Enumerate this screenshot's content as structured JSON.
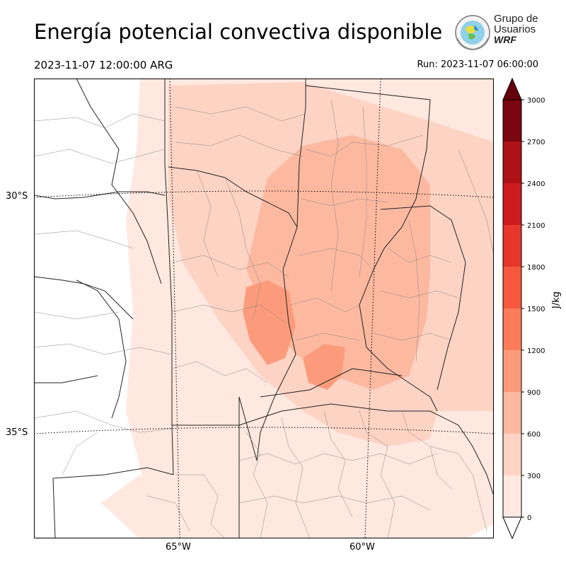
{
  "title": "Energía potencial convectiva disponible",
  "valid_time": "2023-11-07 12:00:00 ARG",
  "run_time": "Run: 2023-11-07 06:00:00",
  "logo": {
    "line1": "Grupo de",
    "line2": "Usuarios",
    "line3": "WRF"
  },
  "map": {
    "lat_labels": [
      "30°S",
      "35°S"
    ],
    "lon_labels": [
      "65°W",
      "60°W"
    ]
  },
  "colorbar": {
    "unit": "J/kg",
    "ticks": [
      "0",
      "300",
      "600",
      "900",
      "1200",
      "1500",
      "1800",
      "2100",
      "2400",
      "2700",
      "3000"
    ],
    "colors": [
      "#fee8df",
      "#fdd3c4",
      "#fcb9a0",
      "#fc9b7b",
      "#fb7b5b",
      "#f6583e",
      "#e7362b",
      "#cd1c1e",
      "#ad1217",
      "#7b0510"
    ]
  }
}
